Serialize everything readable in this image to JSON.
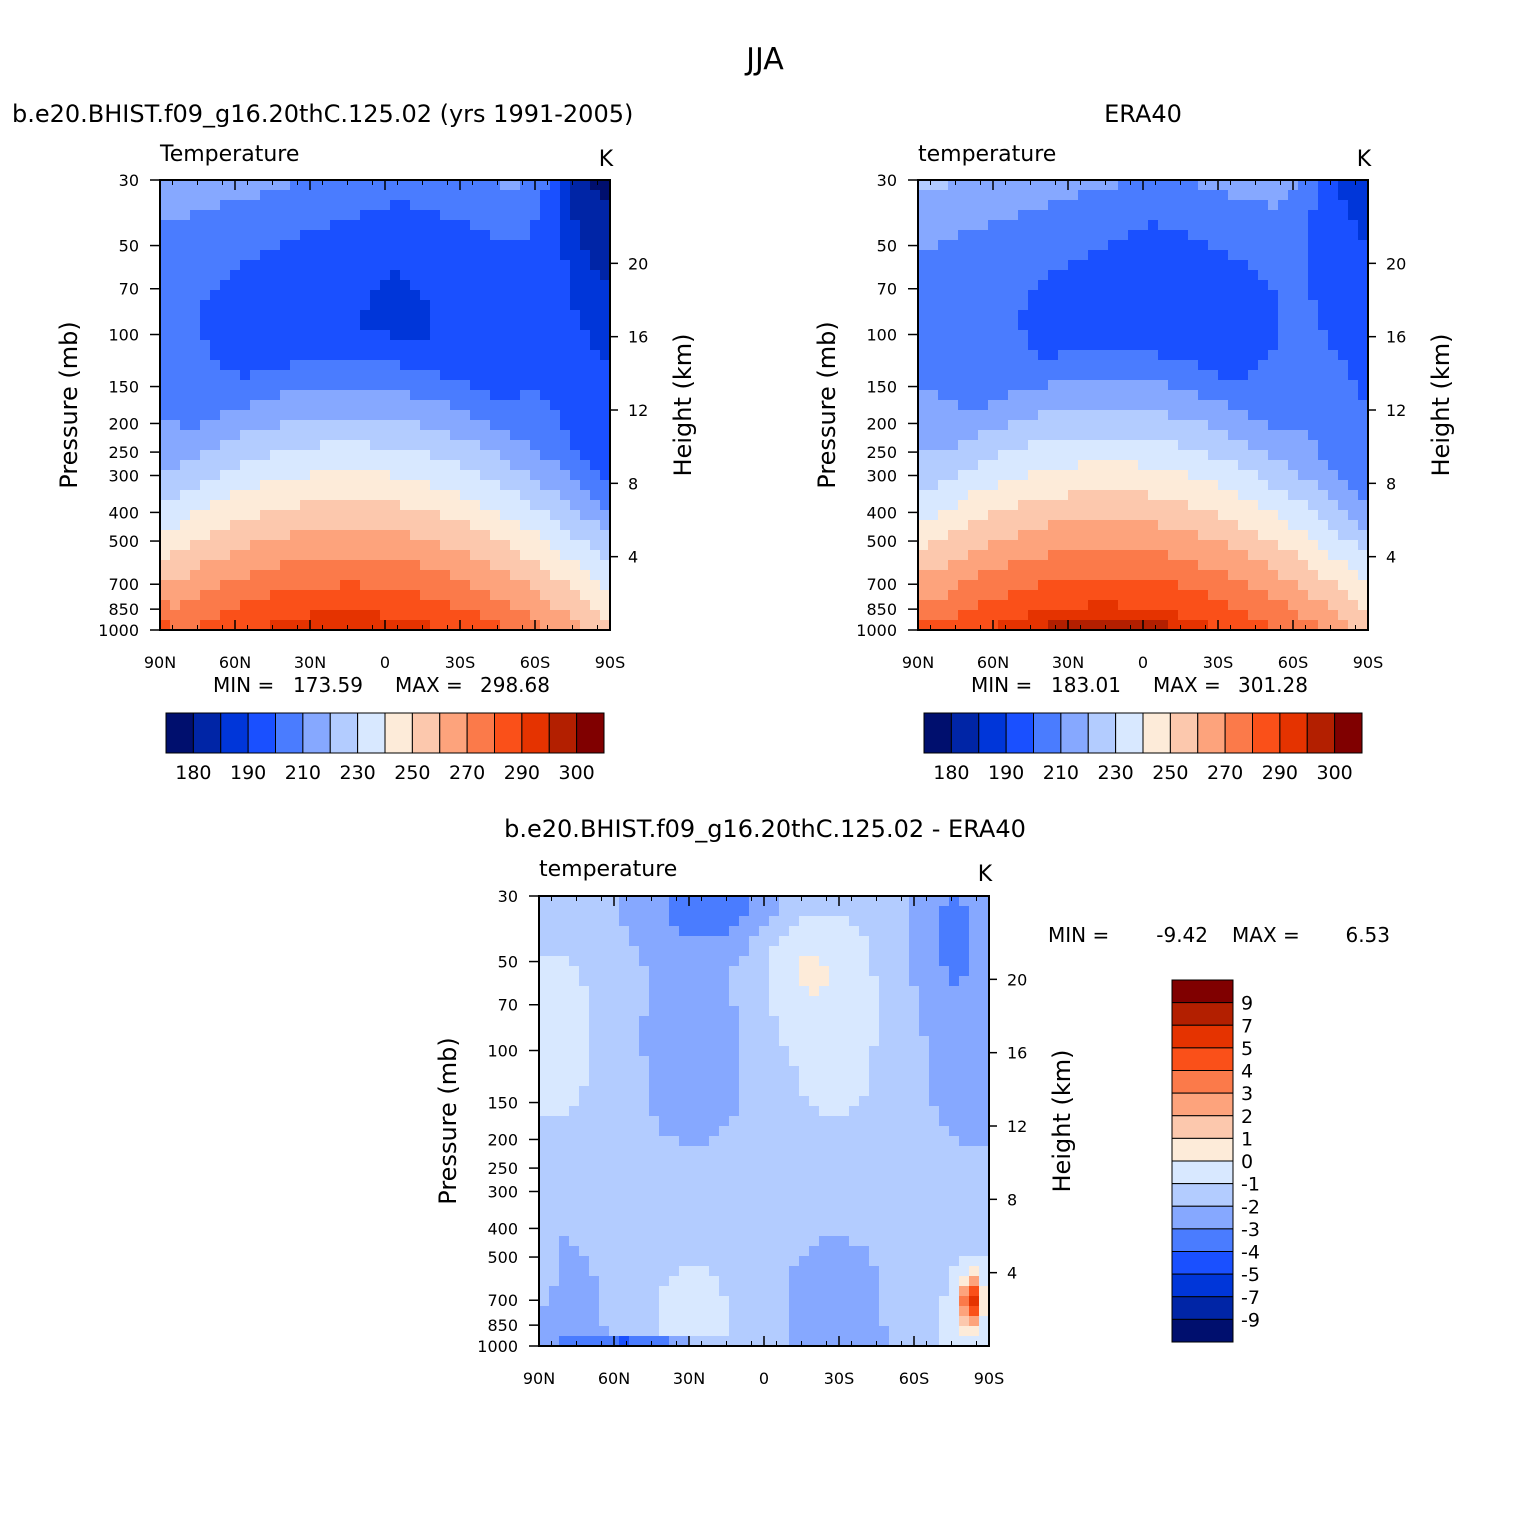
{
  "page_title": "JJA",
  "chart_data": [
    {
      "type": "heatmap",
      "id": "model",
      "header": "b.e20.BHIST.f09_g16.20thC.125.02 (yrs 1991-2005)",
      "variable": "Temperature",
      "units": "K",
      "ylabel": "Pressure (mb)",
      "y2label": "Height (km)",
      "xticks": [
        "90N",
        "60N",
        "30N",
        "0",
        "30S",
        "60S",
        "90S"
      ],
      "yticks": [
        "30",
        "50",
        "70",
        "100",
        "150",
        "200",
        "250",
        "300",
        "400",
        "500",
        "700",
        "850",
        "1000"
      ],
      "y2ticks": [
        "4",
        "8",
        "12",
        "16",
        "20"
      ],
      "min_label": "MIN =",
      "min_value": "173.59",
      "max_label": "MAX =",
      "max_value": "298.68",
      "colorbar_labels": [
        "180",
        "190",
        "210",
        "230",
        "250",
        "270",
        "290",
        "300"
      ],
      "field": {
        "kind": "abs",
        "highT": 296,
        "lowT": 188,
        "polarT": 178
      }
    },
    {
      "type": "heatmap",
      "id": "obs",
      "header": "ERA40",
      "variable": "temperature",
      "units": "K",
      "ylabel": "Pressure (mb)",
      "y2label": "Height (km)",
      "xticks": [
        "90N",
        "60N",
        "30N",
        "0",
        "30S",
        "60S",
        "90S"
      ],
      "yticks": [
        "30",
        "50",
        "70",
        "100",
        "150",
        "200",
        "250",
        "300",
        "400",
        "500",
        "700",
        "850",
        "1000"
      ],
      "y2ticks": [
        "4",
        "8",
        "12",
        "16",
        "20"
      ],
      "min_label": "MIN =",
      "min_value": "183.01",
      "max_label": "MAX =",
      "max_value": "301.28",
      "colorbar_labels": [
        "180",
        "190",
        "210",
        "230",
        "250",
        "270",
        "290",
        "300"
      ],
      "field": {
        "kind": "abs",
        "highT": 299,
        "lowT": 192,
        "polarT": 186
      }
    },
    {
      "type": "heatmap",
      "id": "diff",
      "header": "b.e20.BHIST.f09_g16.20thC.125.02 - ERA40",
      "variable": "temperature",
      "units": "K",
      "ylabel": "Pressure (mb)",
      "y2label": "Height (km)",
      "xticks": [
        "90N",
        "60N",
        "30N",
        "0",
        "30S",
        "60S",
        "90S"
      ],
      "yticks": [
        "30",
        "50",
        "70",
        "100",
        "150",
        "200",
        "250",
        "300",
        "400",
        "500",
        "700",
        "850",
        "1000"
      ],
      "y2ticks": [
        "4",
        "8",
        "12",
        "16",
        "20"
      ],
      "min_label": "MIN =",
      "min_value": "-9.42",
      "max_label": "MAX =",
      "max_value": "6.53",
      "colorbar_labels": [
        "9",
        "7",
        "5",
        "4",
        "3",
        "2",
        "1",
        "0",
        "-1",
        "-2",
        "-3",
        "-4",
        "-5",
        "-7",
        "-9"
      ],
      "field": {
        "kind": "diff"
      }
    }
  ],
  "colors": {
    "absolute": [
      "#000f6e",
      "#0025a6",
      "#0036d9",
      "#1a50ff",
      "#4a7cff",
      "#86a8ff",
      "#b3ccff",
      "#d8e8ff",
      "#fdebd9",
      "#fcc8ad",
      "#fda37c",
      "#fb7a4a",
      "#fa5019",
      "#e53300",
      "#b31f00",
      "#800000"
    ],
    "difference": [
      "#000f6e",
      "#0025a6",
      "#0036d9",
      "#1a50ff",
      "#4a7cff",
      "#86a8ff",
      "#b3ccff",
      "#d8e8ff",
      "#fdebd9",
      "#fcc8ad",
      "#fda37c",
      "#fb7a4a",
      "#fa5019",
      "#e53300",
      "#b31f00",
      "#800000"
    ]
  },
  "levels": {
    "absolute": [
      180,
      185,
      190,
      200,
      210,
      220,
      230,
      240,
      250,
      260,
      270,
      280,
      290,
      295,
      300
    ],
    "difference": [
      -9,
      -7,
      -5,
      -4,
      -3,
      -2,
      -1,
      0,
      1,
      2,
      3,
      4,
      5,
      7,
      9
    ]
  }
}
